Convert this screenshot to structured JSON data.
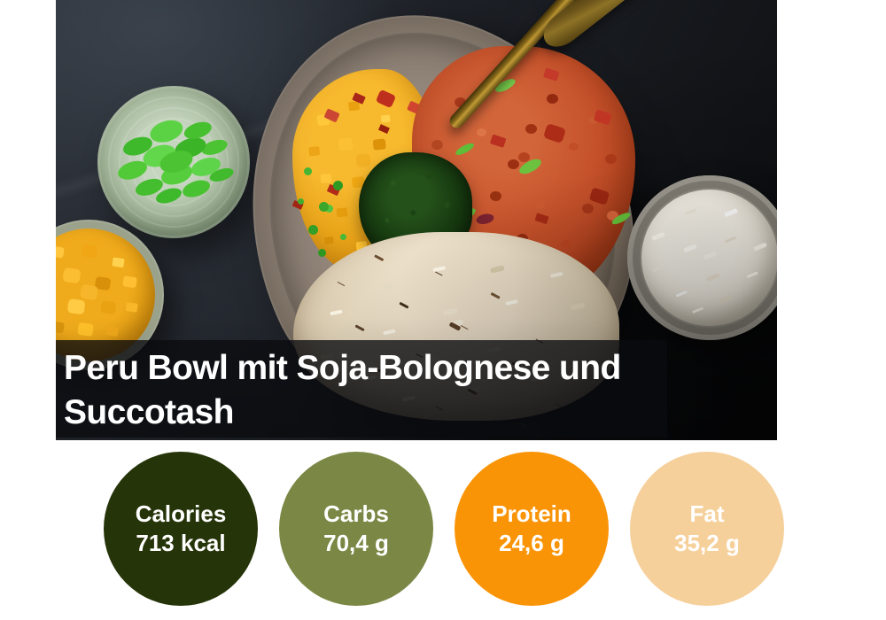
{
  "recipe": {
    "title_lines": [
      "Peru Bowl mit Soja-Bolognese und",
      "Succotash"
    ],
    "title_full": "Peru Bowl mit Soja-Bolognese und Succotash"
  },
  "nutrition": {
    "items": [
      {
        "label": "Calories",
        "value": "713 kcal",
        "color": "#263409",
        "text_color": "#ffffff"
      },
      {
        "label": "Carbs",
        "value": "70,4 g",
        "color": "#7b8745",
        "text_color": "#ffffff"
      },
      {
        "label": "Protein",
        "value": "24,6 g",
        "color": "#fa9407",
        "text_color": "#ffffff"
      },
      {
        "label": "Fat",
        "value": "35,2 g",
        "color": "#f6d09b",
        "text_color": "#ffffff"
      }
    ]
  },
  "photo": {
    "description": "Peru bowl with soy bolognese, succotash corn, herbs and wild rice on a stoneware plate; side bowls of edamame, corn and white rice with gold cutlery on dark slate"
  }
}
